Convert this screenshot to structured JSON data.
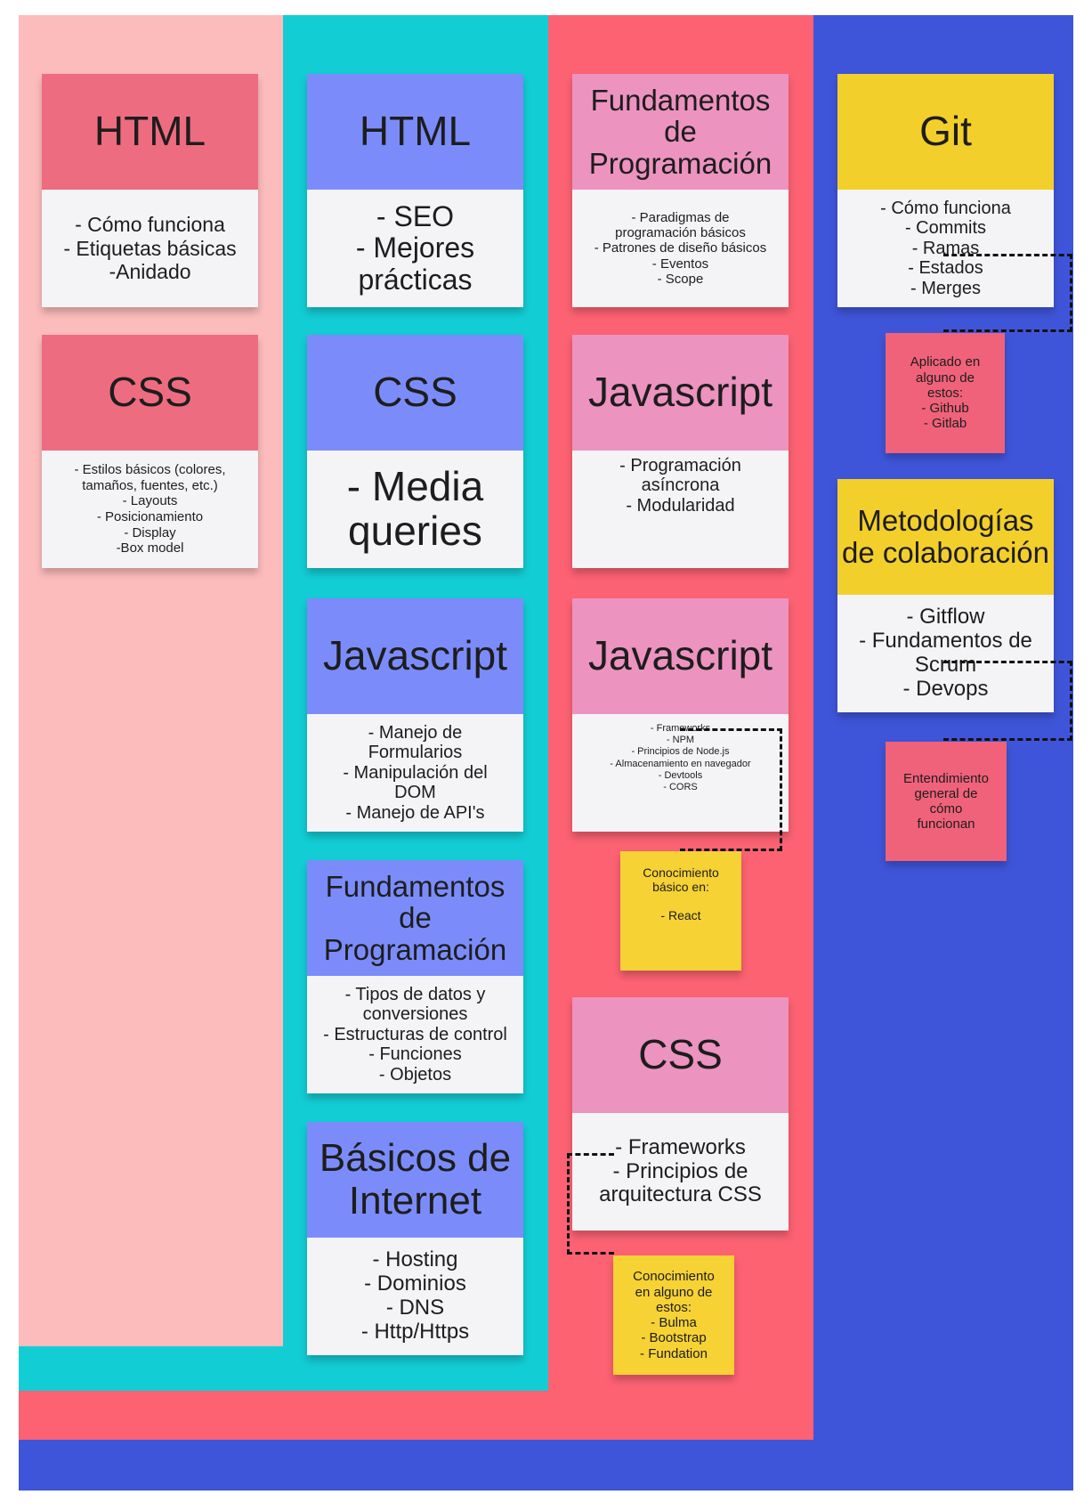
{
  "colors": {
    "zone_pink": "#fdbcbc",
    "zone_cyan": "#13cdd5",
    "zone_red": "#fd6273",
    "zone_blue": "#3f55d9",
    "head_red": "#ee6c80",
    "head_periwinkle": "#7b8cfa",
    "head_pink": "#ec93c0",
    "head_yellow": "#f3cf2b",
    "body": "#f4f4f6",
    "note_pink": "#f0627a",
    "note_yellow": "#f6d235"
  },
  "columns": [
    {
      "cards": [
        {
          "title": "HTML",
          "body": "- Cómo funciona\n- Etiquetas básicas\n-Anidado"
        },
        {
          "title": "CSS",
          "body": "- Estilos básicos (colores,\ntamaños, fuentes, etc.)\n- Layouts\n- Posicionamiento\n- Display\n-Box model"
        }
      ]
    },
    {
      "cards": [
        {
          "title": "HTML",
          "body": "- SEO\n- Mejores\nprácticas"
        },
        {
          "title": "CSS",
          "body": "- Media\nqueries"
        },
        {
          "title": "Javascript",
          "body": "- Manejo de\nFormularios\n- Manipulación del\nDOM\n- Manejo de API's"
        },
        {
          "title": "Fundamentos\nde\nProgramación",
          "body": "- Tipos de datos y\nconversiones\n- Estructuras de control\n- Funciones\n- Objetos"
        },
        {
          "title": "Básicos de\nInternet",
          "body": "- Hosting\n- Dominios\n- DNS\n- Http/Https"
        }
      ]
    },
    {
      "cards": [
        {
          "title": "Fundamentos\nde\nProgramación",
          "body": "- Paradigmas de\nprogramación básicos\n- Patrones de diseño básicos\n- Eventos\n- Scope"
        },
        {
          "title": "Javascript",
          "body": "- Programación\nasíncrona\n- Modularidad"
        },
        {
          "title": "Javascript",
          "body": "- Frameworks\n- NPM\n- Principios de Node.js\n- Almacenamiento en navegador\n- Devtools\n- CORS"
        },
        {
          "title": "CSS",
          "body": "- Frameworks\n- Principios de\narquitectura CSS"
        }
      ],
      "notes": [
        {
          "text": "Conocimiento\nbásico en:\n\n- React"
        },
        {
          "text": "Conocimiento\nen alguno de\nestos:\n- Bulma\n- Bootstrap\n- Fundation"
        }
      ]
    },
    {
      "cards": [
        {
          "title": "Git",
          "body": "- Cómo funciona\n- Commits\n- Ramas\n- Estados\n- Merges"
        },
        {
          "title": "Metodologías\nde\ncolaboración",
          "body": "- Gitflow\n- Fundamentos de\nScrum\n- Devops"
        }
      ],
      "notes": [
        {
          "text": "Aplicado en\nalguno de\nestos:\n- Github\n- Gitlab"
        },
        {
          "text": "Entendimiento\ngeneral de\ncómo\nfuncionan"
        }
      ]
    }
  ]
}
